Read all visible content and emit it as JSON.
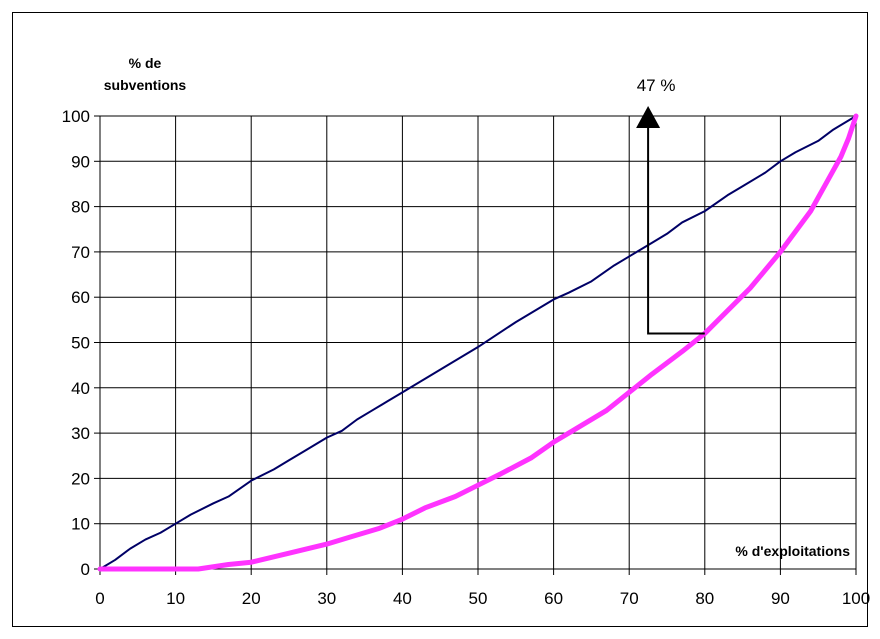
{
  "chart_data": {
    "type": "line",
    "ylabel_lines": [
      "% de",
      "subventions"
    ],
    "xlabel": "% d'exploitations",
    "xlim": [
      0,
      100
    ],
    "ylim": [
      0,
      100
    ],
    "x_ticks": [
      "0",
      "10",
      "20",
      "30",
      "40",
      "50",
      "60",
      "70",
      "80",
      "90",
      "100"
    ],
    "y_ticks": [
      "0",
      "10",
      "20",
      "30",
      "40",
      "50",
      "60",
      "70",
      "80",
      "90",
      "100"
    ],
    "grid": true,
    "series": [
      {
        "color": "#000066",
        "x": [
          0,
          2,
          4,
          6,
          8,
          10,
          12,
          15,
          17,
          20,
          23,
          25,
          27,
          30,
          32,
          34,
          36,
          38,
          40,
          43,
          46,
          50,
          55,
          60,
          62,
          65,
          68,
          70,
          73,
          75,
          77,
          80,
          83,
          85,
          88,
          90,
          92,
          95,
          97,
          100
        ],
        "y": [
          0,
          2,
          4.5,
          6.5,
          8,
          10,
          12,
          14.5,
          16,
          19.5,
          22,
          24,
          26,
          29,
          30.5,
          33,
          35,
          37,
          39,
          42,
          45,
          49,
          54.5,
          59.5,
          61,
          63.5,
          67,
          69,
          72,
          74,
          76.5,
          79,
          82.5,
          84.5,
          87.5,
          90,
          92,
          94.5,
          97,
          100
        ]
      },
      {
        "color": "#ff33ff",
        "x": [
          0,
          5,
          10,
          13,
          15,
          17,
          20,
          25,
          30,
          33,
          37,
          40,
          43,
          47,
          50,
          53,
          57,
          60,
          63,
          67,
          70,
          73,
          77,
          80,
          83,
          86,
          88,
          90,
          92,
          94,
          96,
          98,
          99,
          100
        ],
        "y": [
          0,
          0,
          0,
          0,
          0.5,
          1,
          1.5,
          3.5,
          5.5,
          7,
          9,
          11,
          13.5,
          16,
          18.5,
          21,
          24.5,
          28,
          31,
          35,
          39,
          43,
          48,
          52,
          57,
          62,
          66,
          70,
          74.5,
          79,
          85,
          91,
          95,
          100
        ]
      }
    ],
    "annotation": {
      "label": "47 %",
      "from_point": [
        80,
        52
      ],
      "arrow_x": 72.5,
      "arrow_top": 100
    }
  }
}
